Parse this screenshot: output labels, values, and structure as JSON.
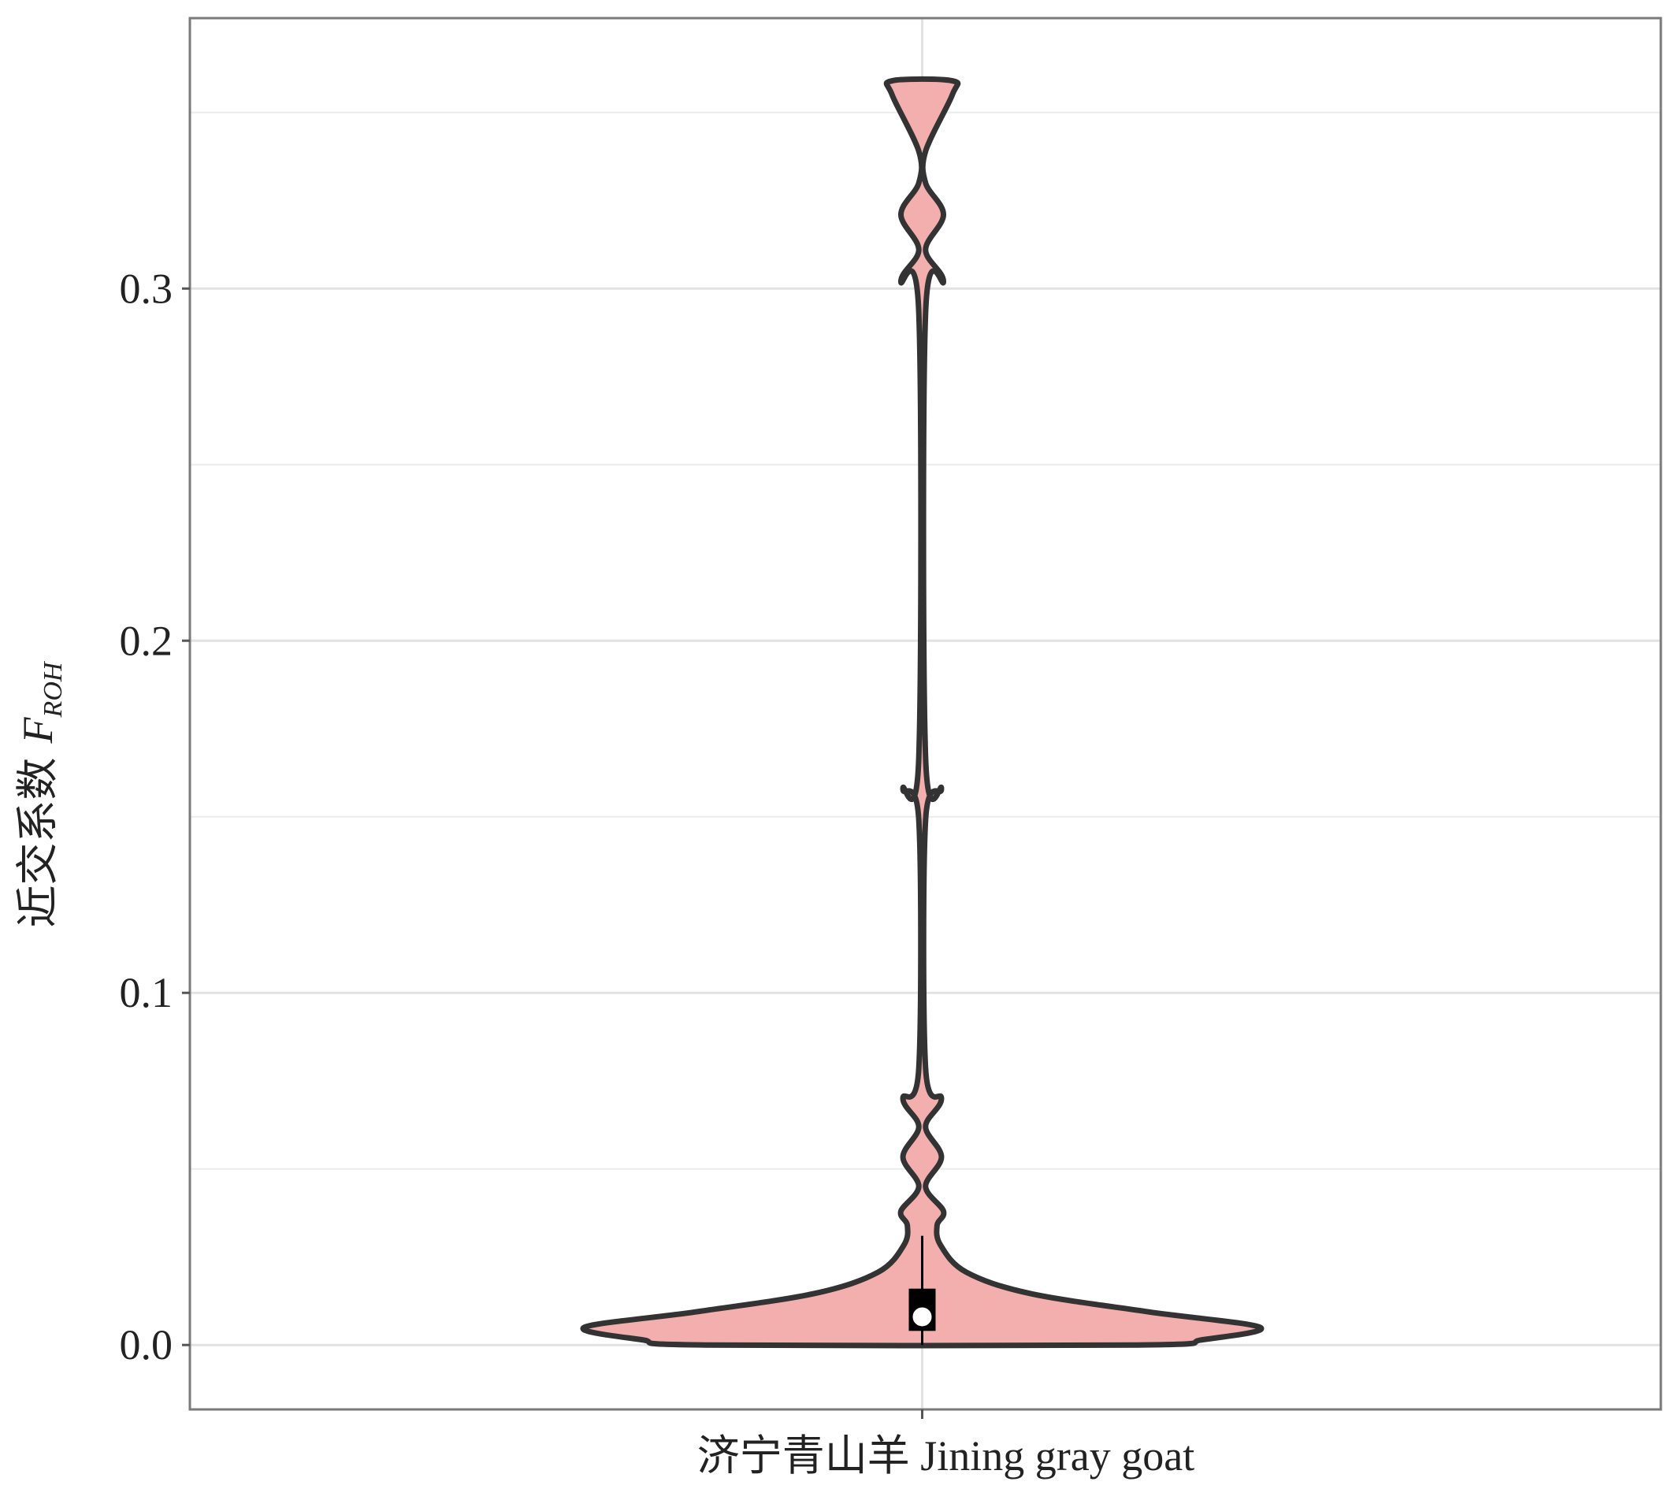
{
  "chart_data": {
    "type": "violin",
    "ylabel": "近交系数",
    "ylabel_symbol": "F",
    "ylabel_subscript": "ROH",
    "categories": [
      "济宁青山羊 Jining gray goat"
    ],
    "ylim": [
      -0.0183,
      0.3768
    ],
    "yticks": [
      {
        "value": 0,
        "label": "0.0"
      },
      0.1,
      0.2,
      0.3
    ],
    "yminor": [
      0.05,
      0.15,
      0.25,
      0.35
    ],
    "grid": true,
    "fill": "#f2afad",
    "edge": "#333333",
    "violin": {
      "y": [
        0,
        0.0015,
        0.005,
        0.0094,
        0.0146,
        0.0207,
        0.0284,
        0.034,
        0.038,
        0.045,
        0.0534,
        0.062,
        0.07,
        0.0787,
        0.149,
        0.158,
        0.167,
        0.293,
        0.302,
        0.311,
        0.321,
        0.33,
        0.339,
        0.355,
        0.359
      ],
      "density": [
        0.64,
        0.83,
        1,
        0.67,
        0.32,
        0.13,
        0.054,
        0.044,
        0.063,
        0.01,
        0.057,
        0.01,
        0.057,
        0.01,
        0.01,
        0.057,
        0.01,
        0.01,
        0.063,
        0.01,
        0.063,
        0.01,
        0.01,
        0.089,
        0.089
      ]
    },
    "box": {
      "whisker_low": 0,
      "q1": 0.004,
      "median": 0.008,
      "q3": 0.016,
      "whisker_high": 0.031
    }
  }
}
